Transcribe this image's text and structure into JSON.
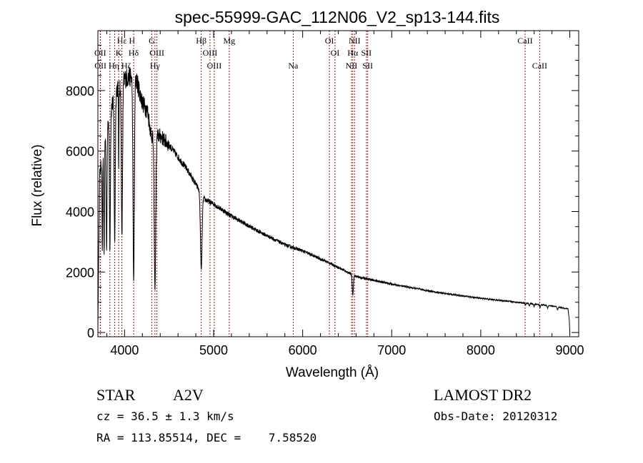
{
  "chart_data": {
    "type": "line",
    "title": "spec-55999-GAC_112N06_V2_sp13-144.fits",
    "xlabel": "Wavelength (Å)",
    "ylabel": "Flux (relative)",
    "xlim": [
      3700,
      9100
    ],
    "ylim": [
      -140,
      9980
    ],
    "x_ticks": [
      4000,
      5000,
      6000,
      7000,
      8000,
      9000
    ],
    "x_tick_labels": [
      "4000",
      "5000",
      "6000",
      "7000",
      "8000",
      "9000"
    ],
    "y_ticks": [
      0,
      2000,
      4000,
      6000,
      8000
    ],
    "y_tick_labels": [
      "0",
      "2000",
      "4000",
      "6000",
      "8000"
    ],
    "grid": false,
    "series": [
      {
        "name": "spectrum",
        "continuum": [
          [
            3700,
            0
          ],
          [
            3705,
            1500
          ],
          [
            3720,
            5200
          ],
          [
            3800,
            6800
          ],
          [
            3900,
            8000
          ],
          [
            4000,
            8400
          ],
          [
            4120,
            8500
          ],
          [
            4200,
            7600
          ],
          [
            4260,
            7300
          ],
          [
            4300,
            6500
          ],
          [
            4400,
            6500
          ],
          [
            4500,
            6200
          ],
          [
            4600,
            5800
          ],
          [
            4700,
            5400
          ],
          [
            4800,
            4900
          ],
          [
            4900,
            4400
          ],
          [
            5000,
            4250
          ],
          [
            5200,
            3850
          ],
          [
            5500,
            3350
          ],
          [
            5800,
            2900
          ],
          [
            6000,
            2700
          ],
          [
            6300,
            2300
          ],
          [
            6500,
            2000
          ],
          [
            6600,
            1850
          ],
          [
            7000,
            1600
          ],
          [
            7500,
            1330
          ],
          [
            8000,
            1130
          ],
          [
            8500,
            970
          ],
          [
            8800,
            880
          ],
          [
            8980,
            780
          ],
          [
            8995,
            400
          ],
          [
            9000,
            0
          ]
        ],
        "absorption_lines": [
          {
            "center": 3750,
            "depth": 0.55,
            "sigma": 5
          },
          {
            "center": 3770,
            "depth": 0.6,
            "sigma": 6
          },
          {
            "center": 3798,
            "depth": 0.6,
            "sigma": 7
          },
          {
            "center": 3835,
            "depth": 0.62,
            "sigma": 8
          },
          {
            "center": 3889,
            "depth": 0.62,
            "sigma": 9
          },
          {
            "center": 3934,
            "depth": 0.35,
            "sigma": 4
          },
          {
            "center": 3970,
            "depth": 0.62,
            "sigma": 10
          },
          {
            "center": 4102,
            "depth": 0.8,
            "sigma": 11
          },
          {
            "center": 4341,
            "depth": 0.78,
            "sigma": 12
          },
          {
            "center": 4861,
            "depth": 0.55,
            "sigma": 13
          },
          {
            "center": 6563,
            "depth": 0.35,
            "sigma": 9
          },
          {
            "center": 8502,
            "depth": 0.06,
            "sigma": 6
          },
          {
            "center": 8545,
            "depth": 0.08,
            "sigma": 6
          },
          {
            "center": 8598,
            "depth": 0.08,
            "sigma": 6
          },
          {
            "center": 8665,
            "depth": 0.1,
            "sigma": 7
          },
          {
            "center": 8750,
            "depth": 0.1,
            "sigma": 7
          },
          {
            "center": 8863,
            "depth": 0.12,
            "sigma": 8
          }
        ],
        "noise_fraction": 0.02
      }
    ],
    "line_markers": [
      {
        "label": "Hε",
        "wavelength": 3970,
        "row": 1
      },
      {
        "label": "H",
        "wavelength": 3969,
        "row": 1,
        "offset": 1
      },
      {
        "label": "G",
        "wavelength": 4305,
        "row": 1
      },
      {
        "label": "Hβ",
        "wavelength": 4861,
        "row": 1
      },
      {
        "label": "Mg",
        "wavelength": 5175,
        "row": 1
      },
      {
        "label": "OI",
        "wavelength": 6300,
        "row": 1
      },
      {
        "label": "NII",
        "wavelength": 6583,
        "row": 1
      },
      {
        "label": "CaII",
        "wavelength": 8498,
        "row": 1
      },
      {
        "label": "OII",
        "wavelength": 3727,
        "row": 2
      },
      {
        "label": "K",
        "wavelength": 3934,
        "row": 2
      },
      {
        "label": "Hδ",
        "wavelength": 4102,
        "row": 2
      },
      {
        "label": "OIII",
        "wavelength": 4363,
        "row": 2
      },
      {
        "label": "OIII",
        "wavelength": 4959,
        "row": 2
      },
      {
        "label": "OI",
        "wavelength": 6363,
        "row": 2
      },
      {
        "label": "Hα",
        "wavelength": 6563,
        "row": 2
      },
      {
        "label": "SII",
        "wavelength": 6716,
        "row": 2
      },
      {
        "label": "OII",
        "wavelength": 3729,
        "row": 3
      },
      {
        "label": "Hη",
        "wavelength": 3835,
        "row": 3
      },
      {
        "label": "Hζ",
        "wavelength": 3889,
        "row": 3
      },
      {
        "label": "Hγ",
        "wavelength": 4341,
        "row": 3
      },
      {
        "label": "OIII",
        "wavelength": 5007,
        "row": 3
      },
      {
        "label": "Na",
        "wavelength": 5894,
        "row": 3
      },
      {
        "label": "NII",
        "wavelength": 6548,
        "row": 3
      },
      {
        "label": "SII",
        "wavelength": 6731,
        "row": 3
      },
      {
        "label": "CaII",
        "wavelength": 8662,
        "row": 3
      }
    ],
    "marker_color": "#8b1a1a"
  },
  "info": {
    "object_class": "STAR",
    "subclass": "A2V",
    "redshift_text": "cz = 36.5 ± 1.3 km/s",
    "coords_text": "RA = 113.85514, DEC =    7.58520",
    "survey": "LAMOST DR2",
    "obs_date": "Obs-Date: 20120312"
  }
}
